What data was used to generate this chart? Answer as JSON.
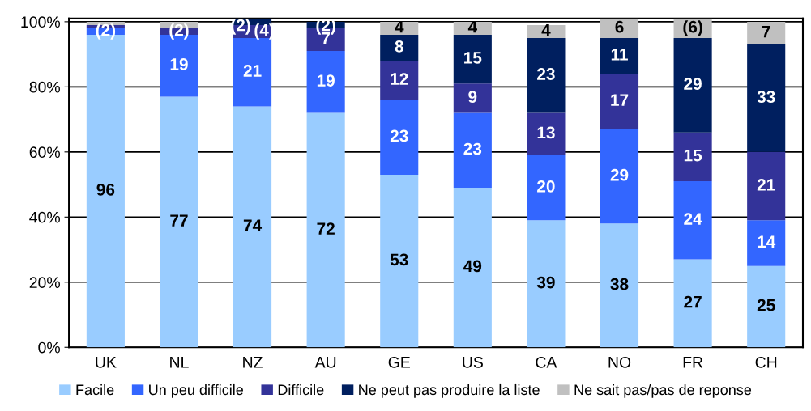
{
  "chart_data": {
    "type": "bar",
    "stacked": true,
    "categories": [
      "UK",
      "NL",
      "NZ",
      "AU",
      "GE",
      "US",
      "CA",
      "NO",
      "FR",
      "CH"
    ],
    "series": [
      {
        "name": "Facile",
        "color": "#99ccff",
        "values": [
          96,
          77,
          74,
          72,
          53,
          49,
          39,
          38,
          27,
          25
        ],
        "value_labels": [
          "96",
          "77",
          "74",
          "72",
          "53",
          "49",
          "39",
          "38",
          "27",
          "25"
        ]
      },
      {
        "name": "Un peu difficile",
        "color": "#3366ff",
        "values": [
          2,
          19,
          21,
          19,
          23,
          23,
          20,
          29,
          24,
          14
        ],
        "value_labels": [
          "(2)",
          "19",
          "21",
          "19",
          "23",
          "23",
          "20",
          "29",
          "24",
          "14"
        ]
      },
      {
        "name": "Difficile",
        "color": "#333399",
        "values": [
          1,
          2,
          4,
          7,
          12,
          9,
          13,
          17,
          15,
          21
        ],
        "value_labels": [
          null,
          "(2)",
          "(4)",
          "7",
          "12",
          "9",
          "13",
          "17",
          "15",
          "21"
        ]
      },
      {
        "name": "Ne peut pas produire la liste",
        "color": "#001f5f",
        "values": [
          0,
          0,
          2,
          2,
          8,
          15,
          23,
          11,
          29,
          33
        ],
        "value_labels": [
          null,
          null,
          "(2)",
          "(2)",
          "8",
          "15",
          "23",
          "11",
          "29",
          "33"
        ]
      },
      {
        "name": "Ne sait pas/pas de reponse",
        "color": "#c0c0c0",
        "values": [
          1,
          2,
          0,
          0,
          4,
          4,
          4,
          6,
          6,
          7
        ],
        "value_labels": [
          null,
          null,
          null,
          null,
          "4",
          "4",
          "4",
          "6",
          "(6)",
          "7"
        ]
      }
    ],
    "ylim": [
      0,
      101
    ],
    "yticks": [
      {
        "value": 0,
        "label": "0%"
      },
      {
        "value": 20,
        "label": "20%"
      },
      {
        "value": 40,
        "label": "40%"
      },
      {
        "value": 60,
        "label": "60%"
      },
      {
        "value": 80,
        "label": "80%"
      },
      {
        "value": 100,
        "label": "100%"
      }
    ],
    "grid": "y",
    "legend": "bottom"
  }
}
